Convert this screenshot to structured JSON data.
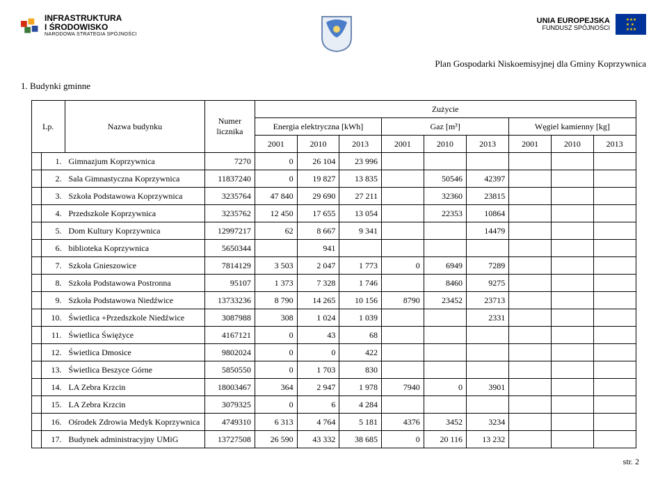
{
  "header": {
    "left_logo": {
      "line1": "INFRASTRUKTURA",
      "line2": "I ŚRODOWISKO",
      "sub": "NARODOWA STRATEGIA SPÓJNOŚCI"
    },
    "right_logo": {
      "line1": "UNIA EUROPEJSKA",
      "line2": "FUNDUSZ SPÓJNOŚCI"
    },
    "plan_title": "Plan Gospodarki Niskoemisyjnej dla Gminy Koprzywnica"
  },
  "section": "1.  Budynki gminne",
  "table": {
    "head": {
      "lp": "Lp.",
      "name": "Nazwa budynku",
      "licz": "Numer licznika",
      "zuzycie": "Zużycie",
      "energy": "Energia elektryczna [kWh]",
      "gas": "Gaz [m³]",
      "coal": "Węgiel kamienny [kg]",
      "years": [
        "2001",
        "2010",
        "2013",
        "2001",
        "2010",
        "2013",
        "2001",
        "2010",
        "2013"
      ]
    },
    "rows": [
      {
        "lp": "1.",
        "name": "Gimnazjum Koprzywnica",
        "licz": "7270",
        "v": [
          "0",
          "26 104",
          "23 996",
          "",
          "",
          "",
          "",
          "",
          ""
        ]
      },
      {
        "lp": "2.",
        "name": "Sala Gimnastyczna Koprzywnica",
        "licz": "11837240",
        "v": [
          "0",
          "19 827",
          "13 835",
          "",
          "50546",
          "42397",
          "",
          "",
          ""
        ]
      },
      {
        "lp": "3.",
        "name": "Szkoła Podstawowa Koprzywnica",
        "licz": "3235764",
        "v": [
          "47 840",
          "29 690",
          "27 211",
          "",
          "32360",
          "23815",
          "",
          "",
          ""
        ]
      },
      {
        "lp": "4.",
        "name": "Przedszkole Koprzywnica",
        "licz": "3235762",
        "v": [
          "12 450",
          "17 655",
          "13 054",
          "",
          "22353",
          "10864",
          "",
          "",
          ""
        ]
      },
      {
        "lp": "5.",
        "name": "Dom Kultury Koprzywnica",
        "licz": "12997217",
        "v": [
          "62",
          "8 667",
          "9 341",
          "",
          "",
          "14479",
          "",
          "",
          ""
        ]
      },
      {
        "lp": "6.",
        "name": "biblioteka Koprzywnica",
        "licz": "5650344",
        "v": [
          "",
          "941",
          "",
          "",
          "",
          "",
          "",
          "",
          ""
        ]
      },
      {
        "lp": "7.",
        "name": "Szkoła Gnieszowice",
        "licz": "7814129",
        "v": [
          "3 503",
          "2 047",
          "1 773",
          "0",
          "6949",
          "7289",
          "",
          "",
          ""
        ]
      },
      {
        "lp": "8.",
        "name": "Szkoła Podstawowa Postronna",
        "licz": "95107",
        "v": [
          "1 373",
          "7 328",
          "1 746",
          "",
          "8460",
          "9275",
          "",
          "",
          ""
        ]
      },
      {
        "lp": "9.",
        "name": "Szkoła Podstawowa Niedźwice",
        "licz": "13733236",
        "v": [
          "8 790",
          "14 265",
          "10 156",
          "8790",
          "23452",
          "23713",
          "",
          "",
          ""
        ]
      },
      {
        "lp": "10.",
        "name": "Świetlica +Przedszkole Niedźwice",
        "licz": "3087988",
        "v": [
          "308",
          "1 024",
          "1 039",
          "",
          "",
          "2331",
          "",
          "",
          ""
        ]
      },
      {
        "lp": "11.",
        "name": "Świetlica Świężyce",
        "licz": "4167121",
        "v": [
          "0",
          "43",
          "68",
          "",
          "",
          "",
          "",
          "",
          ""
        ]
      },
      {
        "lp": "12.",
        "name": "Świetlica Dmosice",
        "licz": "9802024",
        "v": [
          "0",
          "0",
          "422",
          "",
          "",
          "",
          "",
          "",
          ""
        ]
      },
      {
        "lp": "13.",
        "name": "Świetlica Beszyce Górne",
        "licz": "5850550",
        "v": [
          "0",
          "1 703",
          "830",
          "",
          "",
          "",
          "",
          "",
          ""
        ]
      },
      {
        "lp": "14.",
        "name": "LA Zebra Krzcin",
        "licz": "18003467",
        "v": [
          "364",
          "2 947",
          "1 978",
          "7940",
          "0",
          "3901",
          "",
          "",
          ""
        ]
      },
      {
        "lp": "15.",
        "name": "LA Zebra Krzcin",
        "licz": "3079325",
        "v": [
          "0",
          "6",
          "4 284",
          "",
          "",
          "",
          "",
          "",
          ""
        ]
      },
      {
        "lp": "16.",
        "name": "Ośrodek Zdrowia Medyk Koprzywnica",
        "licz": "4749310",
        "v": [
          "6 313",
          "4 764",
          "5 181",
          "4376",
          "3452",
          "3234",
          "",
          "",
          ""
        ]
      },
      {
        "lp": "17.",
        "name": "Budynek administracyjny UMiG",
        "licz": "13727508",
        "v": [
          "26 590",
          "43 332",
          "38 685",
          "0",
          "20 116",
          "13 232",
          "",
          "",
          ""
        ]
      }
    ]
  },
  "footer": "str. 2"
}
